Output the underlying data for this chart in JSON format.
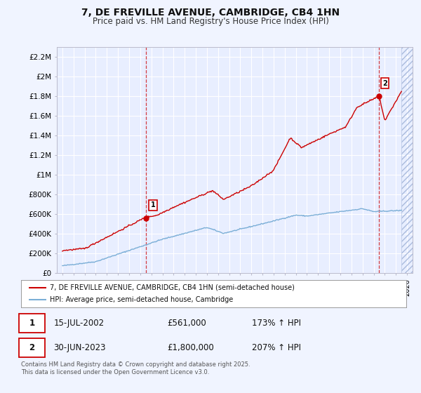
{
  "title": "7, DE FREVILLE AVENUE, CAMBRIDGE, CB4 1HN",
  "subtitle": "Price paid vs. HM Land Registry's House Price Index (HPI)",
  "title_fontsize": 10,
  "subtitle_fontsize": 8.5,
  "bg_color": "#f0f4ff",
  "plot_bg_color": "#e8eeff",
  "grid_color": "#ffffff",
  "red_line_color": "#cc0000",
  "blue_line_color": "#7aaed6",
  "marker1_date": 2002.538,
  "marker1_value": 561000,
  "marker1_label": "1",
  "marker2_date": 2023.497,
  "marker2_value": 1800000,
  "marker2_label": "2",
  "vline1_date": 2002.538,
  "vline2_date": 2023.497,
  "xlim": [
    1994.5,
    2026.5
  ],
  "ylim": [
    0,
    2300000
  ],
  "yticks": [
    0,
    200000,
    400000,
    600000,
    800000,
    1000000,
    1200000,
    1400000,
    1600000,
    1800000,
    2000000,
    2200000
  ],
  "ytick_labels": [
    "£0",
    "£200K",
    "£400K",
    "£600K",
    "£800K",
    "£1M",
    "£1.2M",
    "£1.4M",
    "£1.6M",
    "£1.8M",
    "£2M",
    "£2.2M"
  ],
  "xticks": [
    1995,
    1996,
    1997,
    1998,
    1999,
    2000,
    2001,
    2002,
    2003,
    2004,
    2005,
    2006,
    2007,
    2008,
    2009,
    2010,
    2011,
    2012,
    2013,
    2014,
    2015,
    2016,
    2017,
    2018,
    2019,
    2020,
    2021,
    2022,
    2023,
    2024,
    2025,
    2026
  ],
  "legend_entries": [
    "7, DE FREVILLE AVENUE, CAMBRIDGE, CB4 1HN (semi-detached house)",
    "HPI: Average price, semi-detached house, Cambridge"
  ],
  "annotation1_date": "15-JUL-2002",
  "annotation1_price": "£561,000",
  "annotation1_hpi": "173% ↑ HPI",
  "annotation2_date": "30-JUN-2023",
  "annotation2_price": "£1,800,000",
  "annotation2_hpi": "207% ↑ HPI",
  "footer": "Contains HM Land Registry data © Crown copyright and database right 2025.\nThis data is licensed under the Open Government Licence v3.0.",
  "hatch_color": "#aabbdd"
}
